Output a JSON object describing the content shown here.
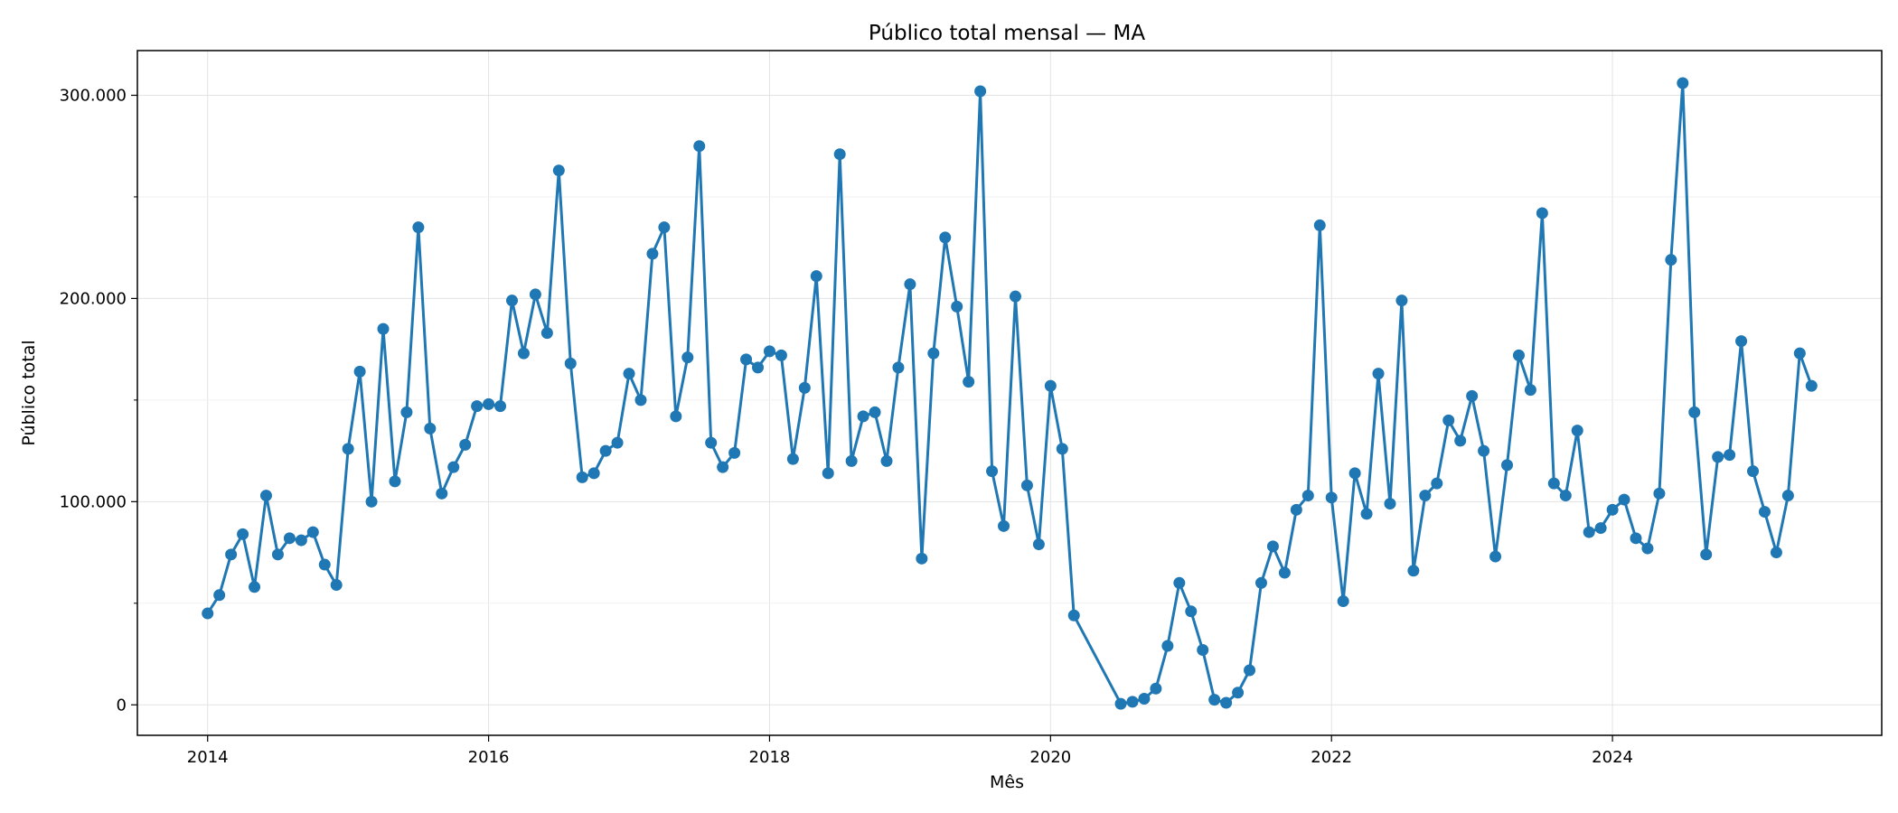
{
  "chart_data": {
    "type": "line",
    "title": "Público total mensal — MA",
    "xlabel": "Mês",
    "ylabel": "Público total",
    "x_ticks": [
      "2014",
      "2016",
      "2018",
      "2020",
      "2022",
      "2024"
    ],
    "y_ticks": [
      "0",
      "100.000",
      "200.000",
      "300.000"
    ],
    "ylim": [
      -15000,
      322000
    ],
    "xlim": [
      "2013-07",
      "2025-12"
    ],
    "grid": true,
    "legend": "none",
    "color": "#1f77b4",
    "series": [
      {
        "x": [
          "2014-01",
          "2014-02",
          "2014-03",
          "2014-04",
          "2014-05",
          "2014-06",
          "2014-07",
          "2014-08",
          "2014-09",
          "2014-10",
          "2014-11",
          "2014-12",
          "2015-01",
          "2015-02",
          "2015-03",
          "2015-04",
          "2015-05",
          "2015-06",
          "2015-07",
          "2015-08",
          "2015-09",
          "2015-10",
          "2015-11",
          "2015-12",
          "2016-01",
          "2016-02",
          "2016-03",
          "2016-04",
          "2016-05",
          "2016-06",
          "2016-07",
          "2016-08",
          "2016-09",
          "2016-10",
          "2016-11",
          "2016-12",
          "2017-01",
          "2017-02",
          "2017-03",
          "2017-04",
          "2017-05",
          "2017-06",
          "2017-07",
          "2017-08",
          "2017-09",
          "2017-10",
          "2017-11",
          "2017-12",
          "2018-01",
          "2018-02",
          "2018-03",
          "2018-04",
          "2018-05",
          "2018-06",
          "2018-07",
          "2018-08",
          "2018-09",
          "2018-10",
          "2018-11",
          "2018-12",
          "2019-01",
          "2019-02",
          "2019-03",
          "2019-04",
          "2019-05",
          "2019-06",
          "2019-07",
          "2019-08",
          "2019-09",
          "2019-10",
          "2019-11",
          "2019-12",
          "2020-01",
          "2020-02",
          "2020-03",
          "2020-07",
          "2020-08",
          "2020-09",
          "2020-10",
          "2020-11",
          "2020-12",
          "2021-01",
          "2021-02",
          "2021-03",
          "2021-04",
          "2021-05",
          "2021-06",
          "2021-07",
          "2021-08",
          "2021-09",
          "2021-10",
          "2021-11",
          "2021-12",
          "2022-01",
          "2022-02",
          "2022-03",
          "2022-04",
          "2022-05",
          "2022-06",
          "2022-07",
          "2022-08",
          "2022-09",
          "2022-10",
          "2022-11",
          "2022-12",
          "2023-01",
          "2023-02",
          "2023-03",
          "2023-04",
          "2023-05",
          "2023-06",
          "2023-07",
          "2023-08",
          "2023-09",
          "2023-10",
          "2023-11",
          "2023-12",
          "2024-01",
          "2024-02",
          "2024-03",
          "2024-04",
          "2024-05",
          "2024-06",
          "2024-07",
          "2024-08",
          "2024-09",
          "2024-10",
          "2024-11",
          "2024-12",
          "2025-01",
          "2025-02",
          "2025-03",
          "2025-04",
          "2025-05",
          "2025-06"
        ],
        "y": [
          45000,
          54000,
          74000,
          84000,
          58000,
          103000,
          74000,
          82000,
          81000,
          85000,
          69000,
          59000,
          126000,
          164000,
          100000,
          185000,
          110000,
          144000,
          235000,
          136000,
          104000,
          117000,
          128000,
          147000,
          148000,
          147000,
          199000,
          173000,
          202000,
          183000,
          263000,
          168000,
          112000,
          114000,
          125000,
          129000,
          163000,
          150000,
          222000,
          235000,
          142000,
          171000,
          275000,
          129000,
          117000,
          124000,
          170000,
          166000,
          174000,
          172000,
          121000,
          156000,
          211000,
          114000,
          271000,
          120000,
          142000,
          144000,
          120000,
          166000,
          207000,
          72000,
          173000,
          230000,
          196000,
          159000,
          302000,
          115000,
          88000,
          201000,
          108000,
          79000,
          157000,
          126000,
          44000,
          500,
          1500,
          3000,
          8000,
          29000,
          60000,
          46000,
          27000,
          2500,
          1000,
          6000,
          17000,
          60000,
          78000,
          65000,
          96000,
          103000,
          236000,
          102000,
          51000,
          114000,
          94000,
          163000,
          99000,
          199000,
          66000,
          103000,
          109000,
          140000,
          130000,
          152000,
          125000,
          73000,
          118000,
          172000,
          155000,
          242000,
          109000,
          103000,
          135000,
          85000,
          87000,
          96000,
          101000,
          82000,
          77000,
          104000,
          219000,
          306000,
          144000,
          74000,
          122000,
          123000,
          179000,
          115000,
          95000,
          75000,
          103000,
          173000,
          157000
        ]
      }
    ]
  }
}
